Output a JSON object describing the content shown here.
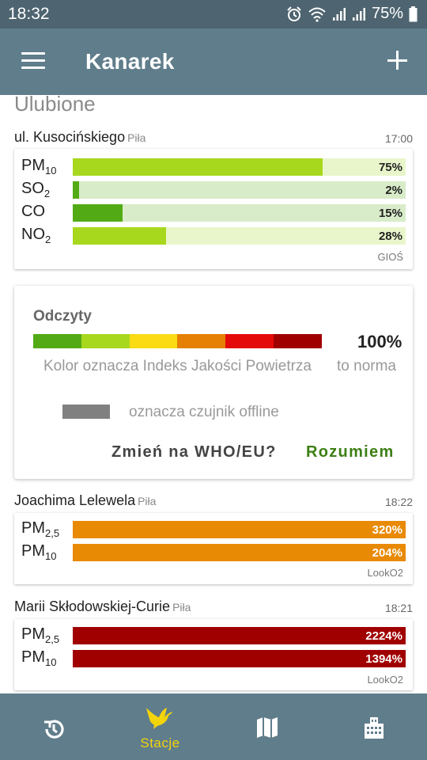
{
  "status": {
    "time": "18:32",
    "battery": "75%"
  },
  "header": {
    "title": "Kanarek"
  },
  "section_title": "Ulubione",
  "stations": [
    {
      "name": "ul. Kusocińskiego",
      "city": "Piła",
      "time": "17:00",
      "source": "GIOŚ",
      "pollutants": [
        {
          "name": "PM",
          "sub": "10",
          "value_pct": 75,
          "label": "75%",
          "fill": "#a8d81e",
          "track": "#e9f6cb"
        },
        {
          "name": "SO",
          "sub": "2",
          "value_pct": 2,
          "label": "2%",
          "fill": "#52ab15",
          "track": "#d8ecc9"
        },
        {
          "name": "CO",
          "sub": "",
          "value_pct": 15,
          "label": "15%",
          "fill": "#52ab15",
          "track": "#d8ecc9"
        },
        {
          "name": "NO",
          "sub": "2",
          "value_pct": 28,
          "label": "28%",
          "fill": "#a8d81e",
          "track": "#e9f6cb"
        }
      ]
    },
    {
      "name": "Joachima Lelewela",
      "city": "Piła",
      "time": "18:22",
      "source": "LookO2",
      "pollutants": [
        {
          "name": "PM",
          "sub": "2,5",
          "value_pct": 100,
          "label": "320%",
          "fill": "#e98a05",
          "track": "#e98a05"
        },
        {
          "name": "PM",
          "sub": "10",
          "value_pct": 100,
          "label": "204%",
          "fill": "#e98a05",
          "track": "#e98a05"
        }
      ]
    },
    {
      "name": "Marii Skłodowskiej-Curie",
      "city": "Piła",
      "time": "18:21",
      "source": "LookO2",
      "pollutants": [
        {
          "name": "PM",
          "sub": "2,5",
          "value_pct": 100,
          "label": "2224%",
          "fill": "#a00000",
          "track": "#a00000"
        },
        {
          "name": "PM",
          "sub": "10",
          "value_pct": 100,
          "label": "1394%",
          "fill": "#a00000",
          "track": "#a00000"
        }
      ]
    }
  ],
  "legend": {
    "title": "Odczyty",
    "scale_colors": [
      "#52ab15",
      "#a8d81e",
      "#fadb14",
      "#e58004",
      "#e40a0a",
      "#a00000"
    ],
    "percent": "100%",
    "percent_caption": "to norma",
    "description": "Kolor oznacza Indeks Jakości Powietrza",
    "offline_text": "oznacza czujnik offline",
    "switch_button": "Zmień na WHO/EU?",
    "ok_button": "Rozumiem"
  },
  "nav": {
    "items": [
      {
        "icon": "history-icon",
        "label": ""
      },
      {
        "icon": "canary-icon",
        "label": "Stacje"
      },
      {
        "icon": "map-icon",
        "label": ""
      },
      {
        "icon": "building-icon",
        "label": ""
      }
    ]
  }
}
